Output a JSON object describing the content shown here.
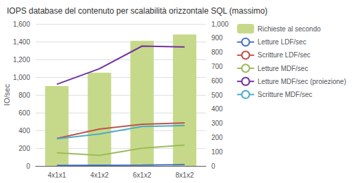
{
  "chart_data": {
    "type": "bar",
    "title": "IOPS database del contenuto per scalabilità orizzontale SQL (massimo)",
    "categories": [
      "4x1x1",
      "4x1x2",
      "6x1x2",
      "8x1x2"
    ],
    "series": [
      {
        "name": "Richieste al secondo",
        "type": "bar",
        "color": "#c6d98a",
        "values": [
          900,
          1050,
          1410,
          1480
        ]
      },
      {
        "name": "Letture LDF/sec",
        "type": "line",
        "color": "#4472c4",
        "values": [
          5,
          8,
          10,
          15
        ]
      },
      {
        "name": "Scritture LDF/sec",
        "type": "line",
        "color": "#c0504d",
        "values": [
          310,
          415,
          470,
          485
        ]
      },
      {
        "name": "Letture MDF/sec",
        "type": "line",
        "color": "#9bbb59",
        "values": [
          148,
          120,
          200,
          235
        ]
      },
      {
        "name": "Letture MDF/sec (proiezione)",
        "type": "line",
        "color": "#7030a0",
        "values": [
          920,
          1095,
          1350,
          1340
        ]
      },
      {
        "name": "Scritture MDF/sec",
        "type": "line",
        "color": "#4bacc6",
        "values": [
          305,
          360,
          445,
          455
        ]
      }
    ],
    "ylabel": "IO/sec",
    "ylim": [
      0,
      1600
    ],
    "yticks": [
      0,
      200,
      400,
      600,
      800,
      1000,
      1200,
      1400,
      1600
    ],
    "y2lim": [
      0,
      1000
    ],
    "y2ticks": [
      0,
      100,
      200,
      300,
      400,
      500,
      600,
      700,
      800,
      900,
      1000
    ],
    "grid": true,
    "legend": "right"
  }
}
